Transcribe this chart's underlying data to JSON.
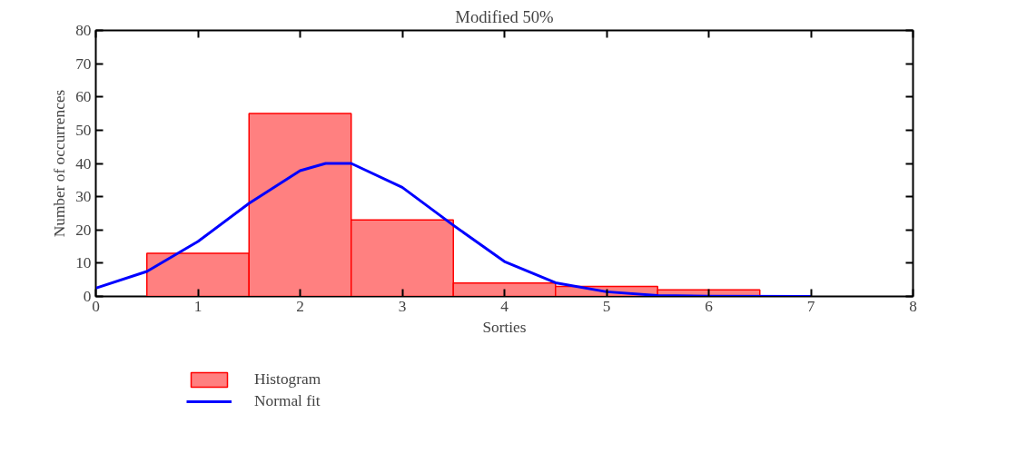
{
  "chart_data": {
    "type": "histogram",
    "title": "Modified 50%",
    "xlabel": "Sorties",
    "ylabel": "Number of occurrences",
    "xlim": [
      0,
      8
    ],
    "xticks": [
      0,
      1,
      2,
      3,
      4,
      5,
      6,
      7,
      8
    ],
    "ylim": [
      0,
      80
    ],
    "yticks": [
      0,
      10,
      20,
      30,
      40,
      50,
      60,
      70,
      80
    ],
    "legend": "bottom left",
    "grid": false,
    "series": [
      {
        "name": "Histogram",
        "type": "histogram",
        "color": "#ff8080",
        "bins": [
          0.5,
          1.5,
          2.5,
          3.5,
          4.5,
          5.5,
          6.5
        ],
        "values": [
          13,
          55,
          23,
          4,
          3,
          2
        ]
      },
      {
        "name": "Normal fit",
        "type": "line",
        "color": "#0000ff",
        "x": [
          0,
          0.5,
          1,
          1.5,
          2,
          2.25,
          2.5,
          3,
          3.5,
          4,
          4.5,
          5,
          5.5,
          6,
          7
        ],
        "values": [
          2.5,
          7.5,
          16.5,
          28,
          37.8,
          40,
          40,
          32.8,
          21.4,
          10.5,
          4.1,
          1.4,
          0.3,
          0.1,
          0
        ]
      }
    ]
  }
}
